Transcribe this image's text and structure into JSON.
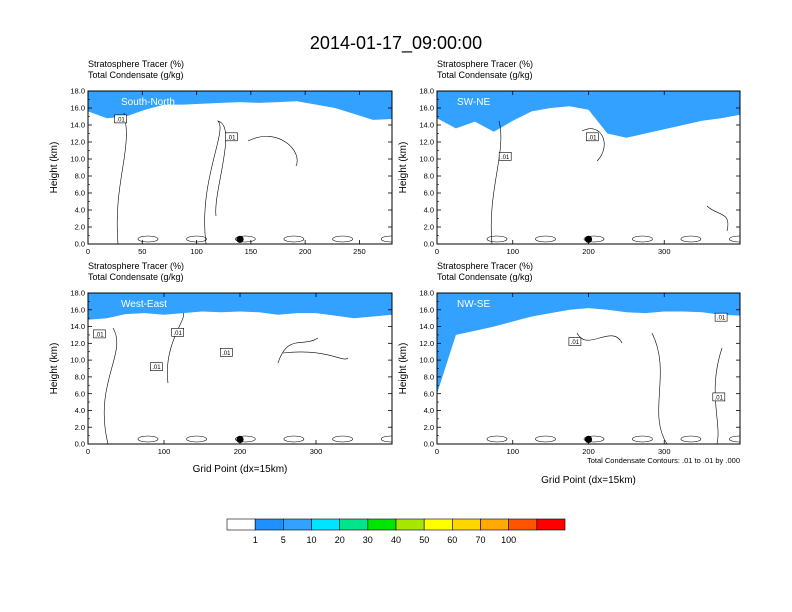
{
  "figure_title": "2014-01-17_09:00:00",
  "colorbar": {
    "labels": [
      "1",
      "5",
      "10",
      "20",
      "30",
      "40",
      "50",
      "60",
      "70",
      "100"
    ],
    "colors": [
      "#ffffff",
      "#1e90ff",
      "#33a1ff",
      "#00e5ff",
      "#00e58c",
      "#00e600",
      "#a6e600",
      "#ffff00",
      "#ffd700",
      "#ffaa00",
      "#ff5500",
      "#ff0000"
    ]
  },
  "footnote": "Total Condensate Contours: .01 to .01 by .000",
  "chart_data": [
    {
      "type": "heatmap",
      "panel_label": "South-North",
      "header_line1": "Stratosphere Tracer   (%)",
      "header_line2": "Total Condensate   (g/kg)",
      "ylabel": "Height (km)",
      "xlabel": "",
      "xlim": [
        0,
        280
      ],
      "ylim": [
        0,
        18
      ],
      "xticks": [
        "0",
        "50",
        "100",
        "150",
        "200",
        "250"
      ],
      "xtick_values": [
        0,
        50,
        100,
        150,
        200,
        250
      ],
      "yticks": [
        "0.0",
        "2.0",
        "4.0",
        "6.0",
        "8.0",
        "10.0",
        "12.0",
        "14.0",
        "16.0",
        "18.0"
      ],
      "marker_x": 140,
      "contour_labels": [
        ".01",
        ".01"
      ],
      "contour_label_pos": [
        [
          30,
          14.6
        ],
        [
          132,
          12.5
        ]
      ],
      "tracer_base_km": [
        15.6,
        14.8,
        15.0,
        15.8,
        16.4,
        16.4,
        16.5,
        16.6,
        16.7,
        16.6,
        16.7,
        16.8,
        16.4,
        16.0,
        15.3,
        14.6,
        14.7
      ]
    },
    {
      "type": "heatmap",
      "panel_label": "SW-NE",
      "header_line1": "Stratosphere Tracer   (%)",
      "header_line2": "Total Condensate   (g/kg)",
      "ylabel": "Height (km)",
      "xlabel": "",
      "xlim": [
        0,
        400
      ],
      "ylim": [
        0,
        18
      ],
      "xticks": [
        "0",
        "100",
        "200",
        "300"
      ],
      "xtick_values": [
        0,
        100,
        200,
        300
      ],
      "yticks": [
        "0.0",
        "2.0",
        "4.0",
        "6.0",
        "8.0",
        "10.0",
        "12.0",
        "14.0",
        "16.0",
        "18.0"
      ],
      "marker_x": 200,
      "contour_labels": [
        ".01",
        ".01"
      ],
      "contour_label_pos": [
        [
          90,
          10.2
        ],
        [
          205,
          12.5
        ]
      ],
      "tracer_base_km": [
        14.8,
        13.6,
        14.4,
        13.2,
        14.5,
        15.6,
        16.0,
        16.2,
        15.8,
        13.0,
        12.5,
        13.0,
        13.5,
        14.0,
        14.5,
        14.8,
        15.2
      ]
    },
    {
      "type": "heatmap",
      "panel_label": "West-East",
      "header_line1": "Stratosphere Tracer   (%)",
      "header_line2": "Total Condensate   (g/kg)",
      "ylabel": "Height (km)",
      "xlabel": "Grid Point (dx=15km)",
      "xlim": [
        0,
        400
      ],
      "ylim": [
        0,
        18
      ],
      "xticks": [
        "0",
        "100",
        "200",
        "300"
      ],
      "xtick_values": [
        0,
        100,
        200,
        300
      ],
      "yticks": [
        "0.0",
        "2.0",
        "4.0",
        "6.0",
        "8.0",
        "10.0",
        "12.0",
        "14.0",
        "16.0",
        "18.0"
      ],
      "marker_x": 200,
      "contour_labels": [
        ".01",
        ".01",
        ".01",
        ".01"
      ],
      "contour_label_pos": [
        [
          15,
          13.0
        ],
        [
          118,
          13.2
        ],
        [
          90,
          9.1
        ],
        [
          182,
          10.8
        ]
      ],
      "tracer_base_km": [
        14.8,
        15.0,
        15.5,
        15.6,
        15.4,
        15.6,
        15.8,
        15.7,
        15.8,
        15.7,
        15.4,
        15.6,
        15.6,
        15.3,
        15.0,
        15.2,
        15.4
      ]
    },
    {
      "type": "heatmap",
      "panel_label": "NW-SE",
      "header_line1": "Stratosphere Tracer   (%)",
      "header_line2": "Total Condensate   (g/kg)",
      "ylabel": "Height (km)",
      "xlabel": "Grid Point (dx=15km)",
      "xlim": [
        0,
        400
      ],
      "ylim": [
        0,
        18
      ],
      "xticks": [
        "0",
        "100",
        "200",
        "300"
      ],
      "xtick_values": [
        0,
        100,
        200,
        300
      ],
      "yticks": [
        "0.0",
        "2.0",
        "4.0",
        "6.0",
        "8.0",
        "10.0",
        "12.0",
        "14.0",
        "16.0",
        "18.0"
      ],
      "marker_x": 200,
      "contour_labels": [
        ".01",
        ".01",
        ".01"
      ],
      "contour_label_pos": [
        [
          182,
          12.1
        ],
        [
          375,
          15.0
        ],
        [
          372,
          5.5
        ]
      ],
      "tracer_base_km": [
        6.0,
        13.0,
        13.5,
        14.0,
        14.6,
        15.2,
        15.6,
        16.0,
        16.2,
        16.0,
        15.7,
        15.6,
        15.8,
        15.8,
        15.7,
        15.4,
        15.3
      ]
    }
  ]
}
